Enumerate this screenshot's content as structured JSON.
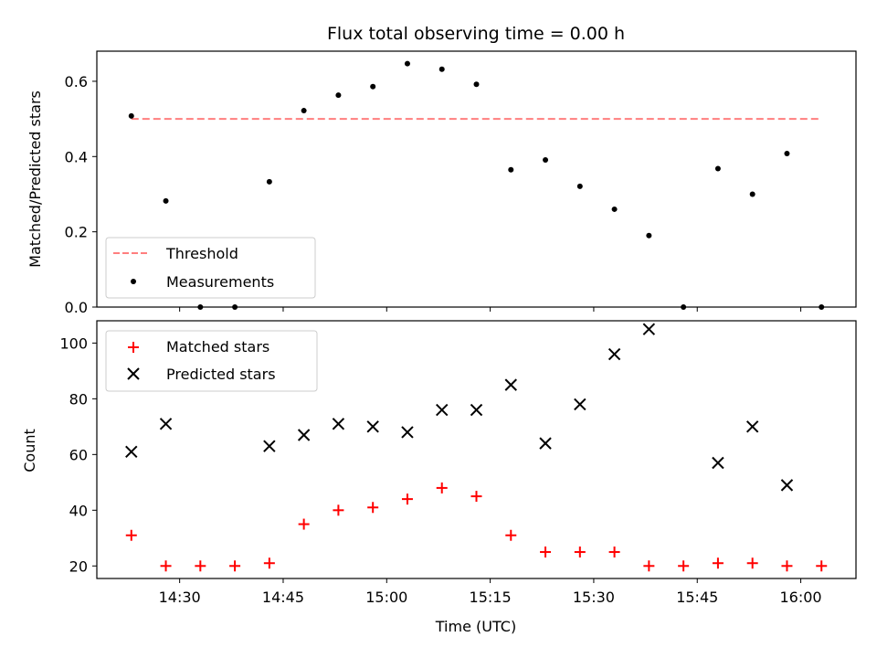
{
  "title": "Flux total observing time = 0.00 h",
  "x_axis": {
    "label": "Time (UTC)",
    "tick_labels": [
      "14:30",
      "14:45",
      "15:00",
      "15:15",
      "15:30",
      "15:45",
      "16:00"
    ]
  },
  "top_panel": {
    "ylabel": "Matched/Predicted stars",
    "yticks": [
      "0.0",
      "0.2",
      "0.4",
      "0.6"
    ],
    "legend": [
      "Threshold",
      "Measurements"
    ]
  },
  "bottom_panel": {
    "ylabel": "Count",
    "yticks": [
      "20",
      "40",
      "60",
      "80",
      "100"
    ],
    "legend": [
      "Matched stars",
      "Predicted stars"
    ]
  },
  "colors": {
    "threshold": "#ff7f7f",
    "measurements": "#000000",
    "matched": "#ff0000",
    "predicted": "#000000"
  },
  "chart_data": [
    {
      "type": "scatter",
      "title": "Flux total observing time = 0.00 h",
      "xlabel": "",
      "ylabel": "Matched/Predicted stars",
      "x_range": [
        "14:18",
        "16:08"
      ],
      "ylim": [
        0.0,
        0.68
      ],
      "threshold": {
        "name": "Threshold",
        "value": 0.5,
        "x_start": "14:23",
        "x_end": "16:03",
        "style": "dashed"
      },
      "series": [
        {
          "name": "Measurements",
          "points": [
            {
              "x": "14:23",
              "y": 0.508
            },
            {
              "x": "14:28",
              "y": 0.282
            },
            {
              "x": "14:33",
              "y": 0.0
            },
            {
              "x": "14:38",
              "y": 0.0
            },
            {
              "x": "14:43",
              "y": 0.333
            },
            {
              "x": "14:48",
              "y": 0.522
            },
            {
              "x": "14:53",
              "y": 0.563
            },
            {
              "x": "14:58",
              "y": 0.586
            },
            {
              "x": "15:03",
              "y": 0.647
            },
            {
              "x": "15:08",
              "y": 0.632
            },
            {
              "x": "15:13",
              "y": 0.592
            },
            {
              "x": "15:18",
              "y": 0.365
            },
            {
              "x": "15:23",
              "y": 0.391
            },
            {
              "x": "15:28",
              "y": 0.321
            },
            {
              "x": "15:33",
              "y": 0.26
            },
            {
              "x": "15:38",
              "y": 0.19
            },
            {
              "x": "15:43",
              "y": 0.0
            },
            {
              "x": "15:48",
              "y": 0.368
            },
            {
              "x": "15:53",
              "y": 0.3
            },
            {
              "x": "15:58",
              "y": 0.408
            },
            {
              "x": "16:03",
              "y": 0.0
            }
          ]
        }
      ],
      "legend_position": "lower left"
    },
    {
      "type": "scatter",
      "xlabel": "Time (UTC)",
      "ylabel": "Count",
      "x_range": [
        "14:18",
        "16:08"
      ],
      "ylim": [
        15.5,
        108
      ],
      "series": [
        {
          "name": "Matched stars",
          "marker": "plus",
          "points": [
            {
              "x": "14:23",
              "y": 31
            },
            {
              "x": "14:28",
              "y": 20
            },
            {
              "x": "14:33",
              "y": 20
            },
            {
              "x": "14:38",
              "y": 20
            },
            {
              "x": "14:43",
              "y": 21
            },
            {
              "x": "14:48",
              "y": 35
            },
            {
              "x": "14:53",
              "y": 40
            },
            {
              "x": "14:58",
              "y": 41
            },
            {
              "x": "15:03",
              "y": 44
            },
            {
              "x": "15:08",
              "y": 48
            },
            {
              "x": "15:13",
              "y": 45
            },
            {
              "x": "15:18",
              "y": 31
            },
            {
              "x": "15:23",
              "y": 25
            },
            {
              "x": "15:28",
              "y": 25
            },
            {
              "x": "15:33",
              "y": 25
            },
            {
              "x": "15:38",
              "y": 20
            },
            {
              "x": "15:43",
              "y": 20
            },
            {
              "x": "15:48",
              "y": 21
            },
            {
              "x": "15:53",
              "y": 21
            },
            {
              "x": "15:58",
              "y": 20
            },
            {
              "x": "16:03",
              "y": 20
            }
          ]
        },
        {
          "name": "Predicted stars",
          "marker": "x",
          "points": [
            {
              "x": "14:23",
              "y": 61
            },
            {
              "x": "14:28",
              "y": 71
            },
            {
              "x": "14:43",
              "y": 63
            },
            {
              "x": "14:48",
              "y": 67
            },
            {
              "x": "14:53",
              "y": 71
            },
            {
              "x": "14:58",
              "y": 70
            },
            {
              "x": "15:03",
              "y": 68
            },
            {
              "x": "15:08",
              "y": 76
            },
            {
              "x": "15:13",
              "y": 76
            },
            {
              "x": "15:18",
              "y": 85
            },
            {
              "x": "15:23",
              "y": 64
            },
            {
              "x": "15:28",
              "y": 78
            },
            {
              "x": "15:33",
              "y": 96
            },
            {
              "x": "15:38",
              "y": 105
            },
            {
              "x": "15:48",
              "y": 57
            },
            {
              "x": "15:53",
              "y": 70
            },
            {
              "x": "15:58",
              "y": 49
            }
          ]
        }
      ],
      "legend_position": "upper left"
    }
  ]
}
